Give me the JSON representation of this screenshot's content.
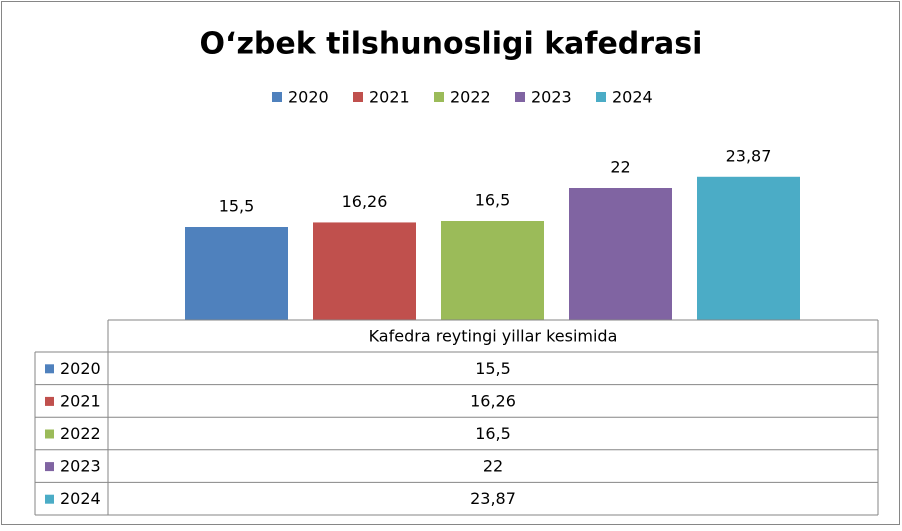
{
  "chart_data": {
    "type": "bar",
    "title": "O‘zbek tilshunosligi kafedrasi",
    "categories": [
      "Kafedra reytingi yillar kesimida"
    ],
    "series": [
      {
        "name": "2020",
        "color": "#4f81bd",
        "values": [
          15.5
        ],
        "value_labels": [
          "15,5"
        ]
      },
      {
        "name": "2021",
        "color": "#c0504d",
        "values": [
          16.26
        ],
        "value_labels": [
          "16,26"
        ]
      },
      {
        "name": "2022",
        "color": "#9bbb59",
        "values": [
          16.5
        ],
        "value_labels": [
          "16,5"
        ]
      },
      {
        "name": "2023",
        "color": "#8064a2",
        "values": [
          22
        ],
        "value_labels": [
          "22"
        ]
      },
      {
        "name": "2024",
        "color": "#4bacc6",
        "values": [
          23.87
        ],
        "value_labels": [
          "23,87"
        ]
      }
    ],
    "ylim": [
      0,
      30
    ],
    "legend": "top",
    "data_table": true
  }
}
